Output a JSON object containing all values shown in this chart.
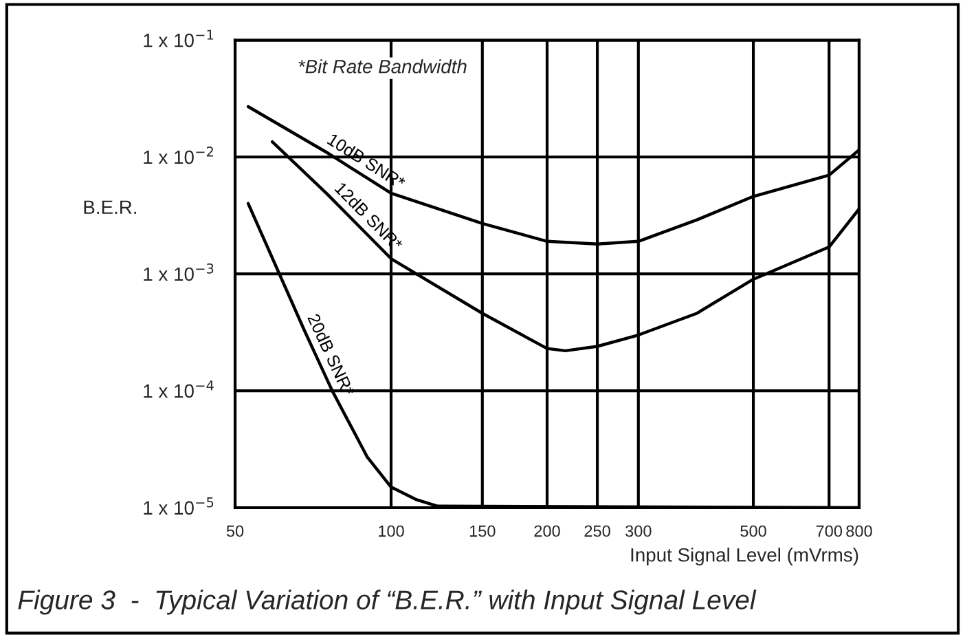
{
  "chart_data": {
    "type": "line",
    "title": "Figure 3  -  Typical Variation of “B.E.R.” with Input Signal Level",
    "xlabel": "Input Signal Level (mVrms)",
    "ylabel": "B.E.R.",
    "annotations": [
      "*Bit Rate Bandwidth"
    ],
    "log": "xy",
    "grid": true,
    "legend": false,
    "marker": "none",
    "line_style": "solid",
    "xlim": [
      50,
      800
    ],
    "xticks": [
      50,
      100,
      150,
      200,
      250,
      300,
      500,
      700,
      800
    ],
    "ylim": [
      1e-05,
      0.1
    ],
    "yticks": [
      {
        "value": 0.1,
        "label": "1 x 10$^{−1}$"
      },
      {
        "value": 0.01,
        "label": "1 x 10$^{−2}$"
      },
      {
        "value": 0.001,
        "label": "1 x 10$^{−3}$"
      },
      {
        "value": 0.0001,
        "label": "1 x 10$^{−4}$"
      },
      {
        "value": 1e-05,
        "label": "1 x 10$^{−5}$"
      }
    ],
    "series": [
      {
        "name": "10dB SNR*",
        "color": "#000000",
        "x": [
          53,
          75,
          100,
          150,
          200,
          250,
          300,
          389,
          500,
          700,
          800
        ],
        "values": [
          0.027,
          0.011,
          0.0049,
          0.0027,
          0.0019,
          0.0018,
          0.0019,
          0.0029,
          0.0046,
          0.007,
          0.0115
        ]
      },
      {
        "name": "12dB SNR*",
        "color": "#000000",
        "x": [
          59,
          75,
          100,
          150,
          200,
          217,
          250,
          300,
          389,
          500,
          700,
          800
        ],
        "values": [
          0.0135,
          0.0049,
          0.00135,
          0.00046,
          0.00023,
          0.00022,
          0.00024,
          0.0003,
          0.00046,
          0.0009,
          0.0017,
          0.0036
        ]
      },
      {
        "name": "20dB SNR*",
        "color": "#000000",
        "x": [
          53,
          68,
          77,
          90,
          100,
          112,
          123,
          800
        ],
        "values": [
          0.004,
          0.00033,
          0.0001,
          2.7e-05,
          1.5e-05,
          1.17e-05,
          1.03e-05,
          1e-05
        ]
      }
    ]
  }
}
